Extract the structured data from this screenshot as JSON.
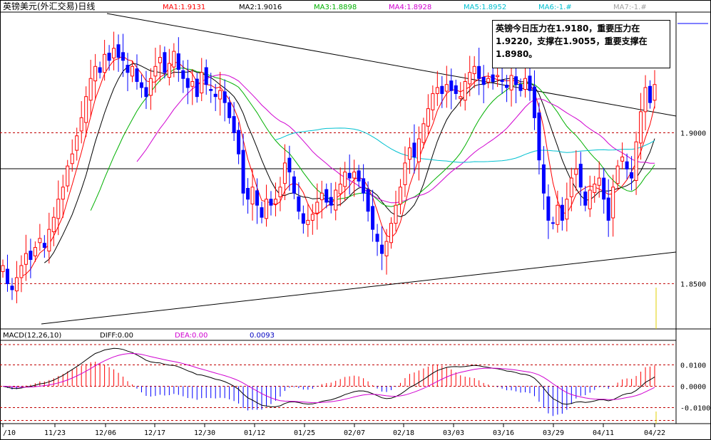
{
  "title": "英镑美元(外汇交易)日线",
  "ma_legend": [
    {
      "label": "MA1:1.9131",
      "color": "#ff0000"
    },
    {
      "label": "MA2:1.9016",
      "color": "#000000"
    },
    {
      "label": "MA3:1.8898",
      "color": "#00b000"
    },
    {
      "label": "MA4:1.8928",
      "color": "#d000d0"
    },
    {
      "label": "MA5:1.8952",
      "color": "#00c0d0"
    },
    {
      "label": "MA6:-1.#",
      "color": "#00c0d0"
    },
    {
      "label": "MA7:-1.#",
      "color": "#a0a0a0"
    }
  ],
  "annotation": "英镑今日压力在1.9180，重要压力在1.9220，支撑在1.9055，重要支撑在1.8980。",
  "macd_legend": {
    "name": "MACD(12,26,10)",
    "diff": "DIFF:0.00",
    "dea": "DEA:0.00",
    "macd": "0.0093"
  },
  "colors": {
    "up": "#ff0000",
    "down": "#0000ff",
    "trend": "#000000",
    "guide": "#c00000"
  },
  "chart_data": {
    "type": "candlestick",
    "x_ticks": [
      "/10",
      "11/23",
      "12/06",
      "12/17",
      "12/30",
      "01/12",
      "01/25",
      "02/07",
      "02/18",
      "03/03",
      "03/16",
      "03/29",
      "04/11",
      "04/22"
    ],
    "price_ticks": [
      "1.9000",
      "1.8500"
    ],
    "price_range": [
      1.835,
      1.94
    ],
    "macd_ticks": [
      "0.0100",
      "0.0000",
      "-0.0100"
    ],
    "macd_range": [
      -0.0175,
      0.0215
    ],
    "close": [
      1.856,
      1.85,
      1.848,
      1.852,
      1.856,
      1.86,
      1.858,
      1.862,
      1.865,
      1.862,
      1.868,
      1.872,
      1.878,
      1.882,
      1.889,
      1.893,
      1.899,
      1.905,
      1.912,
      1.918,
      1.922,
      1.92,
      1.926,
      1.924,
      1.928,
      1.925,
      1.924,
      1.92,
      1.922,
      1.917,
      1.915,
      1.912,
      1.918,
      1.922,
      1.925,
      1.92,
      1.923,
      1.927,
      1.921,
      1.918,
      1.915,
      1.917,
      1.912,
      1.92,
      1.916,
      1.914,
      1.912,
      1.914,
      1.91,
      1.905,
      1.9,
      1.893,
      1.88,
      1.878,
      1.882,
      1.876,
      1.872,
      1.878,
      1.876,
      1.878,
      1.882,
      1.89,
      1.887,
      1.88,
      1.874,
      1.87,
      1.871,
      1.873,
      1.877,
      1.88,
      1.877,
      1.876,
      1.881,
      1.883,
      1.887,
      1.885,
      1.887,
      1.884,
      1.88,
      1.874,
      1.868,
      1.864,
      1.86,
      1.864,
      1.87,
      1.876,
      1.882,
      1.89,
      1.895,
      1.892,
      1.898,
      1.903,
      1.908,
      1.913,
      1.915,
      1.913,
      1.916,
      1.914,
      1.913,
      1.912,
      1.917,
      1.92,
      1.922,
      1.918,
      1.916,
      1.918,
      1.917,
      1.919,
      1.917,
      1.915,
      1.919,
      1.916,
      1.914,
      1.918,
      1.914,
      1.905,
      1.891,
      1.88,
      1.871,
      1.87,
      1.876,
      1.871,
      1.878,
      1.885,
      1.888,
      1.882,
      1.876,
      1.881,
      1.883,
      1.885,
      1.878,
      1.871,
      1.882,
      1.889,
      1.892,
      1.888,
      1.885,
      1.897,
      1.907,
      1.915,
      1.91,
      1.916
    ]
  }
}
